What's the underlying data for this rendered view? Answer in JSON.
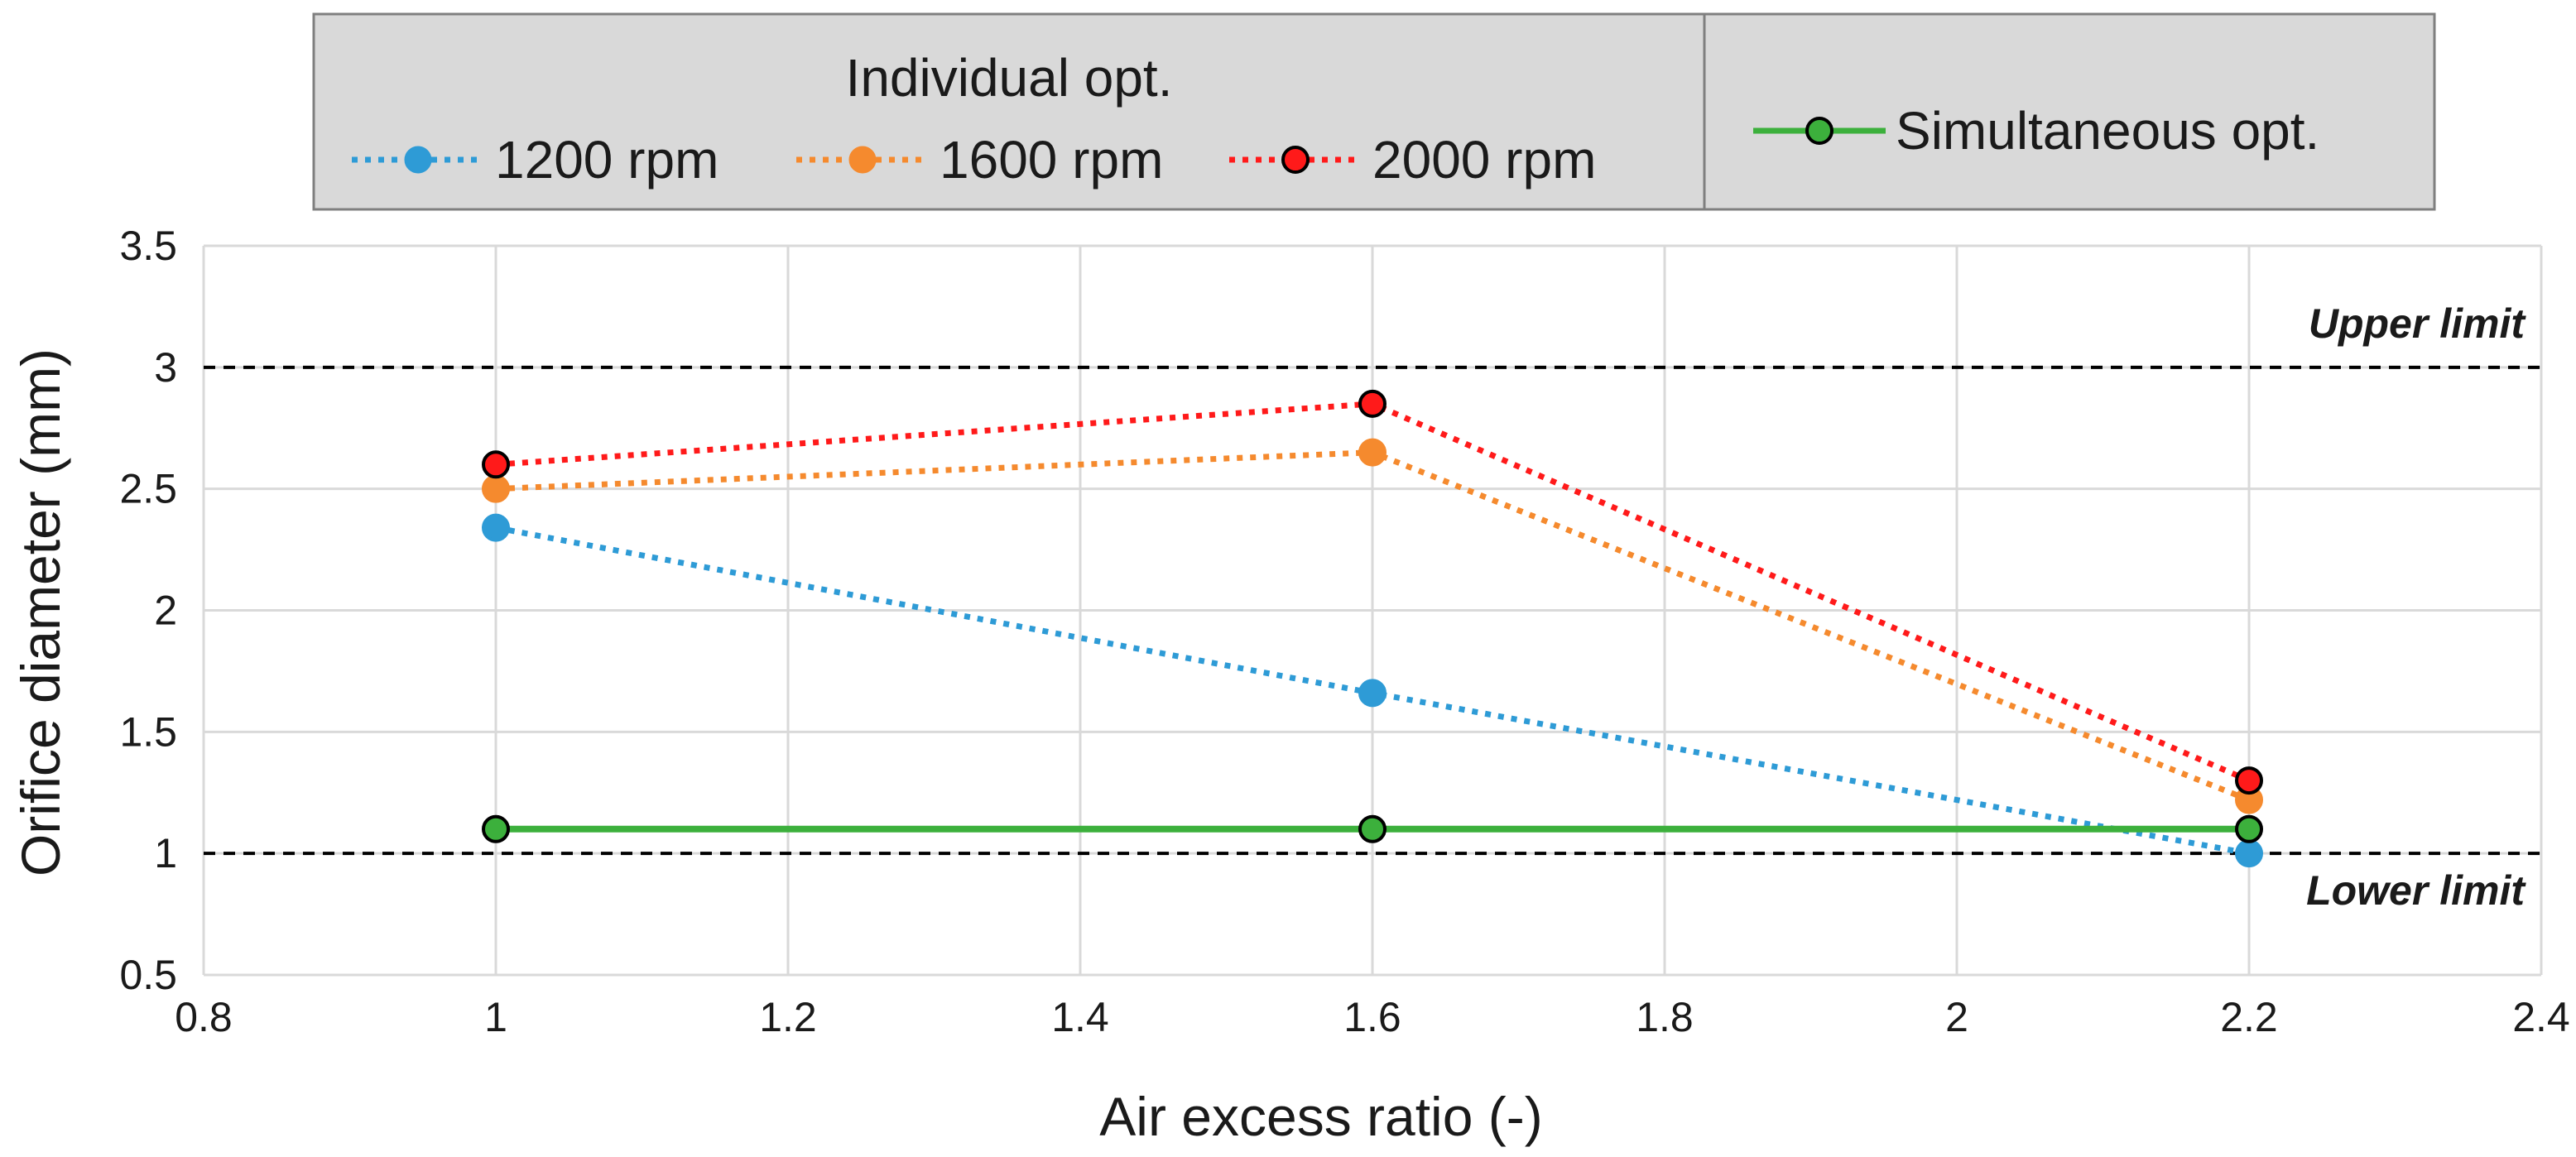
{
  "chart_data": {
    "type": "line",
    "title": "",
    "xlabel": "Air excess ratio (-)",
    "ylabel": "Orifice diameter (mm)",
    "xlim": [
      0.8,
      2.4
    ],
    "ylim": [
      0.5,
      3.5
    ],
    "xticks": [
      0.8,
      1,
      1.2,
      1.4,
      1.6,
      1.8,
      2,
      2.2,
      2.4
    ],
    "yticks": [
      0.5,
      1,
      1.5,
      2,
      2.5,
      3,
      3.5
    ],
    "x": [
      1,
      1.6,
      2.2
    ],
    "grid": true,
    "legend_position": "top",
    "legend": {
      "group_title": "Individual opt."
    },
    "series": [
      {
        "name": "1200 rpm",
        "values": [
          2.34,
          1.66,
          1.0
        ],
        "color": "#2e9bd6",
        "style": "dotted",
        "marker_edge": "#2e9bd6"
      },
      {
        "name": "1600 rpm",
        "values": [
          2.5,
          2.65,
          1.22
        ],
        "color": "#f58a2e",
        "style": "dotted",
        "marker_edge": "#f58a2e"
      },
      {
        "name": "2000 rpm",
        "values": [
          2.6,
          2.85,
          1.3
        ],
        "color": "#ff1a1a",
        "style": "dotted",
        "marker_edge": "#000000"
      },
      {
        "name": "Simultaneous opt.",
        "values": [
          1.1,
          1.1,
          1.1
        ],
        "color": "#3cb03c",
        "style": "solid",
        "marker_edge": "#000000"
      }
    ],
    "reference_lines": [
      {
        "y": 3,
        "label": "Upper limit",
        "color": "#000000"
      },
      {
        "y": 1,
        "label": "Lower limit",
        "color": "#000000"
      }
    ]
  }
}
